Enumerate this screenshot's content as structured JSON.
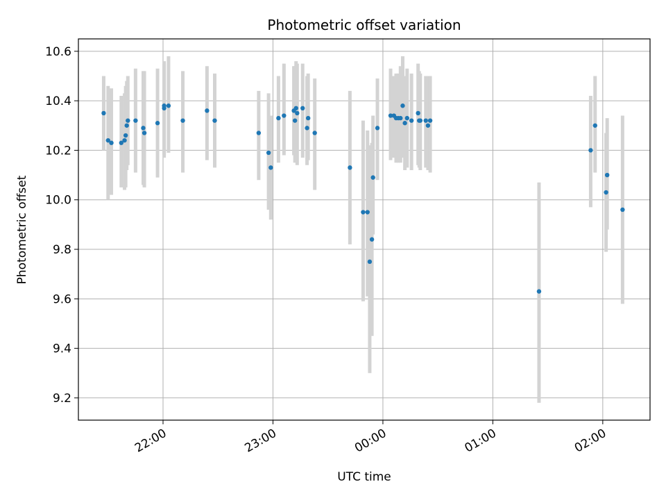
{
  "chart_data": {
    "type": "scatter",
    "title": "Photometric offset variation",
    "xlabel": "UTC time",
    "ylabel": "Photometric offset",
    "grid": true,
    "colors": {
      "points": "#1f77b4",
      "error_bars": "#d3d3d3",
      "grid": "#b0b0b0"
    },
    "x_axis": {
      "unit": "hours since 00:00 UTC (negative = previous evening)",
      "range": [
        -2.77,
        2.43
      ],
      "ticks": [
        {
          "value": -2,
          "label": "22:00"
        },
        {
          "value": -1,
          "label": "23:00"
        },
        {
          "value": 0,
          "label": "00:00"
        },
        {
          "value": 1,
          "label": "01:00"
        },
        {
          "value": 2,
          "label": "02:00"
        }
      ]
    },
    "y_axis": {
      "range": [
        9.11,
        10.65
      ],
      "ticks": [
        {
          "value": 9.2,
          "label": "9.2"
        },
        {
          "value": 9.4,
          "label": "9.4"
        },
        {
          "value": 9.6,
          "label": "9.6"
        },
        {
          "value": 9.8,
          "label": "9.8"
        },
        {
          "value": 10.0,
          "label": "10.0"
        },
        {
          "value": 10.2,
          "label": "10.2"
        },
        {
          "value": 10.4,
          "label": "10.4"
        },
        {
          "value": 10.6,
          "label": "10.6"
        }
      ]
    },
    "points": [
      {
        "x": -2.54,
        "y": 10.35,
        "ylo": 10.2,
        "yhi": 10.5
      },
      {
        "x": -2.5,
        "y": 10.24,
        "ylo": 10.0,
        "yhi": 10.46
      },
      {
        "x": -2.47,
        "y": 10.23,
        "ylo": 10.02,
        "yhi": 10.45
      },
      {
        "x": -2.38,
        "y": 10.23,
        "ylo": 10.05,
        "yhi": 10.42
      },
      {
        "x": -2.35,
        "y": 10.24,
        "ylo": 10.04,
        "yhi": 10.43
      },
      {
        "x": -2.34,
        "y": 10.26,
        "ylo": 10.05,
        "yhi": 10.46
      },
      {
        "x": -2.33,
        "y": 10.3,
        "ylo": 10.12,
        "yhi": 10.48
      },
      {
        "x": -2.32,
        "y": 10.32,
        "ylo": 10.14,
        "yhi": 10.5
      },
      {
        "x": -2.25,
        "y": 10.32,
        "ylo": 10.11,
        "yhi": 10.53
      },
      {
        "x": -2.18,
        "y": 10.29,
        "ylo": 10.06,
        "yhi": 10.52
      },
      {
        "x": -2.17,
        "y": 10.27,
        "ylo": 10.05,
        "yhi": 10.52
      },
      {
        "x": -2.05,
        "y": 10.31,
        "ylo": 10.09,
        "yhi": 10.53
      },
      {
        "x": -1.99,
        "y": 10.37,
        "ylo": 10.17,
        "yhi": 10.56
      },
      {
        "x": -1.99,
        "y": 10.38,
        "ylo": 10.18,
        "yhi": 10.55
      },
      {
        "x": -1.95,
        "y": 10.38,
        "ylo": 10.19,
        "yhi": 10.58
      },
      {
        "x": -1.82,
        "y": 10.32,
        "ylo": 10.11,
        "yhi": 10.52
      },
      {
        "x": -1.6,
        "y": 10.36,
        "ylo": 10.16,
        "yhi": 10.54
      },
      {
        "x": -1.53,
        "y": 10.32,
        "ylo": 10.13,
        "yhi": 10.51
      },
      {
        "x": -1.13,
        "y": 10.27,
        "ylo": 10.08,
        "yhi": 10.44
      },
      {
        "x": -1.04,
        "y": 10.19,
        "ylo": 9.96,
        "yhi": 10.43
      },
      {
        "x": -1.02,
        "y": 10.13,
        "ylo": 9.92,
        "yhi": 10.34
      },
      {
        "x": -0.95,
        "y": 10.33,
        "ylo": 10.15,
        "yhi": 10.5
      },
      {
        "x": -0.9,
        "y": 10.34,
        "ylo": 10.18,
        "yhi": 10.55
      },
      {
        "x": -0.81,
        "y": 10.36,
        "ylo": 10.18,
        "yhi": 10.54
      },
      {
        "x": -0.8,
        "y": 10.32,
        "ylo": 10.15,
        "yhi": 10.54
      },
      {
        "x": -0.79,
        "y": 10.37,
        "ylo": 10.16,
        "yhi": 10.56
      },
      {
        "x": -0.78,
        "y": 10.35,
        "ylo": 10.14,
        "yhi": 10.55
      },
      {
        "x": -0.73,
        "y": 10.37,
        "ylo": 10.17,
        "yhi": 10.55
      },
      {
        "x": -0.69,
        "y": 10.29,
        "ylo": 10.14,
        "yhi": 10.5
      },
      {
        "x": -0.68,
        "y": 10.33,
        "ylo": 10.16,
        "yhi": 10.51
      },
      {
        "x": -0.62,
        "y": 10.27,
        "ylo": 10.04,
        "yhi": 10.49
      },
      {
        "x": -0.3,
        "y": 10.13,
        "ylo": 9.82,
        "yhi": 10.44
      },
      {
        "x": -0.18,
        "y": 9.95,
        "ylo": 9.59,
        "yhi": 10.32
      },
      {
        "x": -0.14,
        "y": 9.95,
        "ylo": 9.61,
        "yhi": 10.28
      },
      {
        "x": -0.12,
        "y": 9.75,
        "ylo": 9.3,
        "yhi": 10.22
      },
      {
        "x": -0.1,
        "y": 9.84,
        "ylo": 9.45,
        "yhi": 10.23
      },
      {
        "x": -0.09,
        "y": 10.09,
        "ylo": 9.86,
        "yhi": 10.34
      },
      {
        "x": -0.05,
        "y": 10.29,
        "ylo": 10.08,
        "yhi": 10.49
      },
      {
        "x": 0.07,
        "y": 10.34,
        "ylo": 10.16,
        "yhi": 10.53
      },
      {
        "x": 0.1,
        "y": 10.34,
        "ylo": 10.17,
        "yhi": 10.5
      },
      {
        "x": 0.12,
        "y": 10.33,
        "ylo": 10.15,
        "yhi": 10.51
      },
      {
        "x": 0.14,
        "y": 10.33,
        "ylo": 10.15,
        "yhi": 10.51
      },
      {
        "x": 0.16,
        "y": 10.33,
        "ylo": 10.15,
        "yhi": 10.54
      },
      {
        "x": 0.18,
        "y": 10.38,
        "ylo": 10.17,
        "yhi": 10.58
      },
      {
        "x": 0.2,
        "y": 10.31,
        "ylo": 10.12,
        "yhi": 10.5
      },
      {
        "x": 0.22,
        "y": 10.33,
        "ylo": 10.13,
        "yhi": 10.53
      },
      {
        "x": 0.26,
        "y": 10.32,
        "ylo": 10.12,
        "yhi": 10.51
      },
      {
        "x": 0.32,
        "y": 10.35,
        "ylo": 10.14,
        "yhi": 10.55
      },
      {
        "x": 0.33,
        "y": 10.32,
        "ylo": 10.13,
        "yhi": 10.52
      },
      {
        "x": 0.34,
        "y": 10.32,
        "ylo": 10.12,
        "yhi": 10.51
      },
      {
        "x": 0.39,
        "y": 10.32,
        "ylo": 10.13,
        "yhi": 10.5
      },
      {
        "x": 0.41,
        "y": 10.3,
        "ylo": 10.12,
        "yhi": 10.5
      },
      {
        "x": 0.43,
        "y": 10.32,
        "ylo": 10.11,
        "yhi": 10.5
      },
      {
        "x": 1.42,
        "y": 9.63,
        "ylo": 9.18,
        "yhi": 10.07
      },
      {
        "x": 1.89,
        "y": 10.2,
        "ylo": 9.97,
        "yhi": 10.42
      },
      {
        "x": 1.93,
        "y": 10.3,
        "ylo": 10.11,
        "yhi": 10.5
      },
      {
        "x": 2.03,
        "y": 10.03,
        "ylo": 9.79,
        "yhi": 10.27
      },
      {
        "x": 2.04,
        "y": 10.1,
        "ylo": 9.88,
        "yhi": 10.33
      },
      {
        "x": 2.18,
        "y": 9.96,
        "ylo": 9.58,
        "yhi": 10.34
      }
    ]
  }
}
